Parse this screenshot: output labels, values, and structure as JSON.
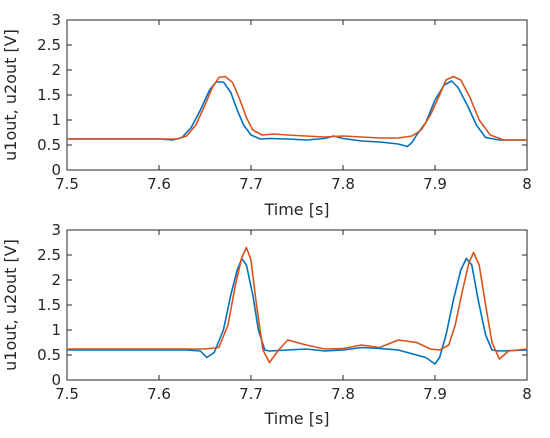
{
  "chart_data": [
    {
      "type": "line",
      "xlabel": "Time [s]",
      "ylabel": "u1out, u2out [V]",
      "xlim": [
        7.5,
        8.0
      ],
      "ylim": [
        0,
        3
      ],
      "xticks": [
        "7.5",
        "7.6",
        "7.7",
        "7.8",
        "7.9",
        "8"
      ],
      "yticks": [
        "0",
        "0.5",
        "1",
        "1.5",
        "2",
        "2.5",
        "3"
      ],
      "grid": false,
      "series": [
        {
          "color": "#0072BD",
          "x": [
            7.5,
            7.55,
            7.6,
            7.615,
            7.625,
            7.635,
            7.645,
            7.655,
            7.662,
            7.67,
            7.678,
            7.685,
            7.692,
            7.7,
            7.71,
            7.72,
            7.74,
            7.76,
            7.78,
            7.79,
            7.8,
            7.82,
            7.84,
            7.86,
            7.87,
            7.875,
            7.88,
            7.89,
            7.9,
            7.91,
            7.918,
            7.925,
            7.935,
            7.945,
            7.955,
            7.97,
            8.0
          ],
          "y": [
            0.62,
            0.62,
            0.62,
            0.6,
            0.65,
            0.85,
            1.2,
            1.6,
            1.76,
            1.76,
            1.55,
            1.2,
            0.9,
            0.7,
            0.62,
            0.63,
            0.62,
            0.6,
            0.63,
            0.68,
            0.63,
            0.58,
            0.56,
            0.52,
            0.47,
            0.55,
            0.7,
            0.95,
            1.4,
            1.7,
            1.78,
            1.65,
            1.3,
            0.9,
            0.65,
            0.6,
            0.6
          ]
        },
        {
          "color": "#D95319",
          "x": [
            7.5,
            7.55,
            7.6,
            7.62,
            7.63,
            7.64,
            7.65,
            7.658,
            7.665,
            7.672,
            7.68,
            7.688,
            7.695,
            7.702,
            7.712,
            7.725,
            7.74,
            7.76,
            7.78,
            7.8,
            7.82,
            7.84,
            7.86,
            7.875,
            7.885,
            7.895,
            7.905,
            7.912,
            7.92,
            7.928,
            7.938,
            7.948,
            7.96,
            7.975,
            8.0
          ],
          "y": [
            0.62,
            0.62,
            0.62,
            0.62,
            0.68,
            0.9,
            1.3,
            1.65,
            1.85,
            1.87,
            1.75,
            1.4,
            1.05,
            0.8,
            0.7,
            0.72,
            0.7,
            0.68,
            0.66,
            0.68,
            0.66,
            0.64,
            0.64,
            0.68,
            0.8,
            1.1,
            1.5,
            1.8,
            1.87,
            1.8,
            1.45,
            1.0,
            0.7,
            0.6,
            0.6
          ]
        }
      ]
    },
    {
      "type": "line",
      "xlabel": "Time [s]",
      "ylabel": "u1out, u2out [V]",
      "xlim": [
        7.5,
        8.0
      ],
      "ylim": [
        0,
        3
      ],
      "xticks": [
        "7.5",
        "7.6",
        "7.7",
        "7.8",
        "7.9",
        "8"
      ],
      "yticks": [
        "0",
        "0.5",
        "1",
        "1.5",
        "2",
        "2.5",
        "3"
      ],
      "grid": false,
      "series": [
        {
          "color": "#0072BD",
          "x": [
            7.5,
            7.55,
            7.6,
            7.63,
            7.645,
            7.652,
            7.66,
            7.67,
            7.678,
            7.685,
            7.69,
            7.695,
            7.702,
            7.708,
            7.715,
            7.72,
            7.74,
            7.76,
            7.78,
            7.8,
            7.82,
            7.84,
            7.86,
            7.88,
            7.89,
            7.9,
            7.905,
            7.912,
            7.92,
            7.928,
            7.934,
            7.94,
            7.947,
            7.955,
            7.962,
            7.97,
            8.0
          ],
          "y": [
            0.6,
            0.6,
            0.6,
            0.6,
            0.58,
            0.45,
            0.55,
            1.0,
            1.7,
            2.2,
            2.43,
            2.3,
            1.7,
            1.0,
            0.6,
            0.58,
            0.6,
            0.62,
            0.58,
            0.6,
            0.65,
            0.63,
            0.6,
            0.5,
            0.45,
            0.32,
            0.45,
            0.9,
            1.6,
            2.2,
            2.43,
            2.3,
            1.6,
            0.9,
            0.6,
            0.58,
            0.6
          ]
        },
        {
          "color": "#D95319",
          "x": [
            7.5,
            7.55,
            7.6,
            7.65,
            7.665,
            7.675,
            7.683,
            7.69,
            7.695,
            7.7,
            7.706,
            7.713,
            7.72,
            7.73,
            7.74,
            7.76,
            7.78,
            7.8,
            7.82,
            7.84,
            7.86,
            7.88,
            7.895,
            7.905,
            7.915,
            7.922,
            7.93,
            7.937,
            7.942,
            7.948,
            7.955,
            7.962,
            7.97,
            7.98,
            8.0
          ],
          "y": [
            0.62,
            0.62,
            0.62,
            0.62,
            0.65,
            1.1,
            1.9,
            2.45,
            2.65,
            2.4,
            1.5,
            0.6,
            0.35,
            0.6,
            0.8,
            0.7,
            0.62,
            0.63,
            0.7,
            0.65,
            0.8,
            0.75,
            0.62,
            0.6,
            0.7,
            1.1,
            1.8,
            2.35,
            2.55,
            2.3,
            1.5,
            0.75,
            0.42,
            0.58,
            0.62
          ]
        }
      ]
    }
  ]
}
